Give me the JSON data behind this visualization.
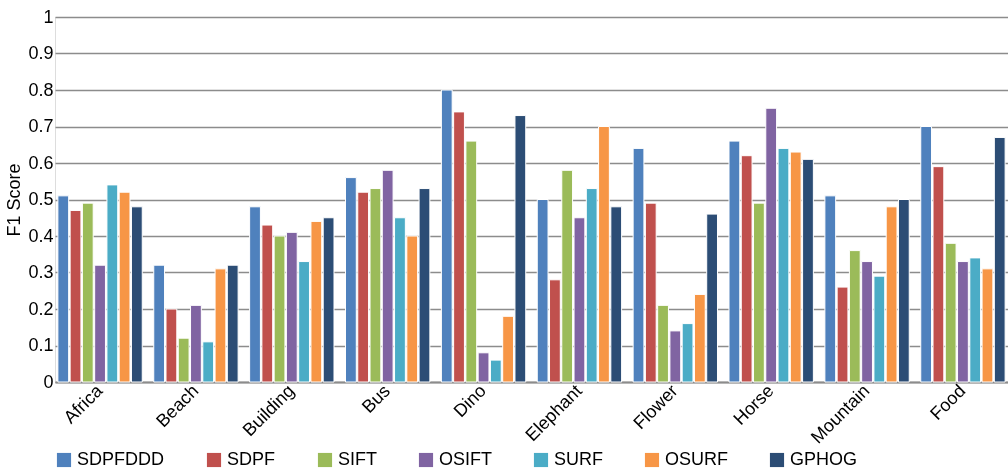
{
  "chart_data": {
    "type": "bar",
    "ylabel": "F1 Score",
    "categories": [
      "Africa",
      "Beach",
      "Building",
      "Bus",
      "Dino",
      "Elephant",
      "Flower",
      "Horse",
      "Mountain",
      "Food"
    ],
    "series": [
      {
        "name": "SDPFDDD",
        "color": "#4f81bd",
        "values": [
          0.51,
          0.32,
          0.48,
          0.56,
          0.8,
          0.5,
          0.64,
          0.66,
          0.51,
          0.7
        ]
      },
      {
        "name": "SDPF",
        "color": "#c0504d",
        "values": [
          0.47,
          0.2,
          0.43,
          0.52,
          0.74,
          0.28,
          0.49,
          0.62,
          0.26,
          0.59
        ]
      },
      {
        "name": "SIFT",
        "color": "#9bbb59",
        "values": [
          0.49,
          0.12,
          0.4,
          0.53,
          0.66,
          0.58,
          0.21,
          0.49,
          0.36,
          0.38
        ]
      },
      {
        "name": "OSIFT",
        "color": "#8064a2",
        "values": [
          0.32,
          0.21,
          0.41,
          0.58,
          0.08,
          0.45,
          0.14,
          0.75,
          0.33,
          0.33
        ]
      },
      {
        "name": "SURF",
        "color": "#4bacc6",
        "values": [
          0.54,
          0.11,
          0.33,
          0.45,
          0.06,
          0.53,
          0.16,
          0.64,
          0.29,
          0.34
        ]
      },
      {
        "name": "OSURF",
        "color": "#f79646",
        "values": [
          0.52,
          0.31,
          0.44,
          0.4,
          0.18,
          0.7,
          0.24,
          0.63,
          0.48,
          0.31
        ]
      },
      {
        "name": "GPHOG",
        "color": "#2c4d75",
        "values": [
          0.48,
          0.32,
          0.45,
          0.53,
          0.73,
          0.48,
          0.46,
          0.61,
          0.5,
          0.67
        ]
      }
    ],
    "ylim": [
      0,
      1
    ],
    "yticks": [
      0,
      0.1,
      0.2,
      0.3,
      0.4,
      0.5,
      0.6,
      0.7,
      0.8,
      0.9,
      1
    ],
    "grid": "y",
    "legend": "bottom"
  }
}
